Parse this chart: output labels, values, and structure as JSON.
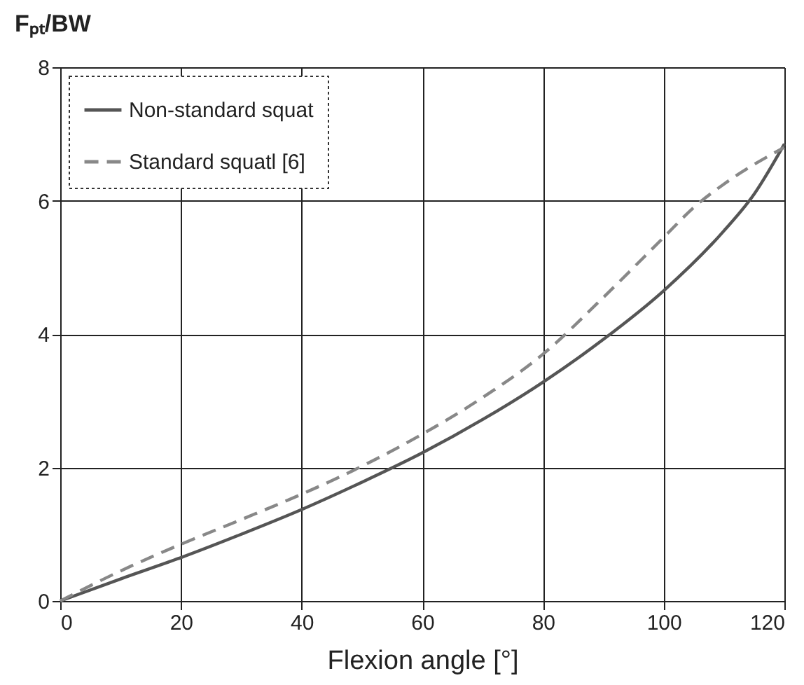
{
  "chart_data": {
    "type": "line",
    "xlabel": "Flexion angle [°]",
    "ylabel": "Fₚₜ/BW",
    "x": [
      0,
      10,
      20,
      30,
      40,
      50,
      60,
      70,
      80,
      90,
      100,
      110,
      115,
      120
    ],
    "series": [
      {
        "name": "Non-standard squat",
        "color": "#555555",
        "line_style": "solid",
        "values": [
          0,
          0.33,
          0.65,
          1.0,
          1.37,
          1.78,
          2.22,
          2.72,
          3.28,
          3.92,
          4.65,
          5.55,
          6.1,
          6.85
        ]
      },
      {
        "name": "Standard squatl [6]",
        "color": "#888888",
        "line_style": "dashed",
        "x": [
          0,
          10,
          20,
          30,
          40,
          50,
          60,
          70,
          80,
          90,
          100,
          105,
          110,
          120
        ],
        "values": [
          0,
          0.45,
          0.85,
          1.22,
          1.6,
          2.02,
          2.5,
          3.05,
          3.7,
          4.55,
          5.45,
          5.9,
          6.25,
          6.8
        ]
      }
    ],
    "xlim": [
      0,
      120
    ],
    "xticks": [
      0,
      20,
      40,
      60,
      80,
      100,
      120
    ],
    "ylim": [
      0,
      8
    ],
    "yticks": [
      0,
      2,
      4,
      6,
      8
    ],
    "grid": true,
    "legend": "top left",
    "marker": "none"
  }
}
